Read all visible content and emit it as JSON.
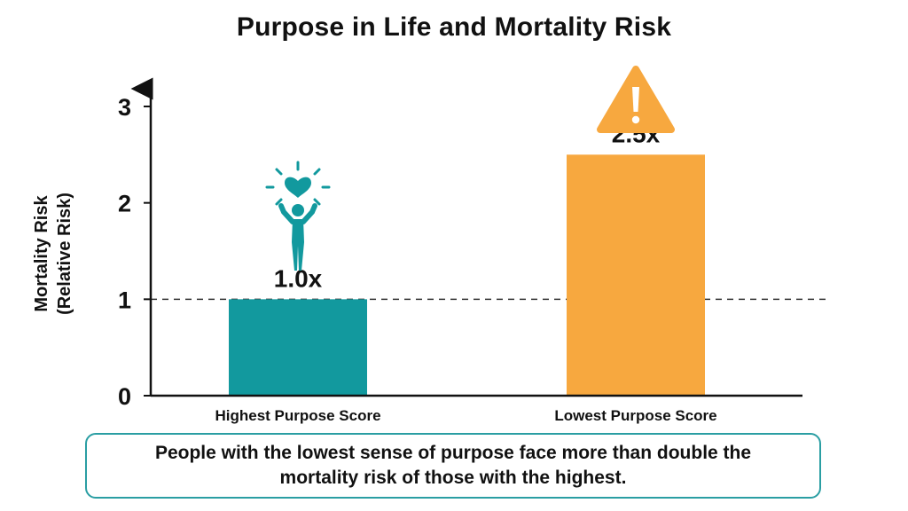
{
  "chart_data": {
    "type": "bar",
    "title": "Purpose in Life and Mortality Risk",
    "ylabel_lines": [
      "Mortality Risk",
      "(Relative Risk)"
    ],
    "xlabel": "",
    "categories": [
      "Highest Purpose Score",
      "Lowest Purpose Score"
    ],
    "values": [
      1.0,
      2.5
    ],
    "data_labels": [
      "1.0x",
      "2.5x"
    ],
    "yticks": [
      "0",
      "1",
      "2",
      "3"
    ],
    "ylim": [
      0,
      3
    ],
    "reference_line": 1,
    "grid": false,
    "colors": [
      "#12999e",
      "#f7a83f"
    ],
    "icons": [
      "happy-person-heart-icon",
      "warning-triangle-icon"
    ]
  },
  "callout": {
    "text": "People with the lowest sense of purpose face more than double the mortality risk of those with the highest."
  }
}
